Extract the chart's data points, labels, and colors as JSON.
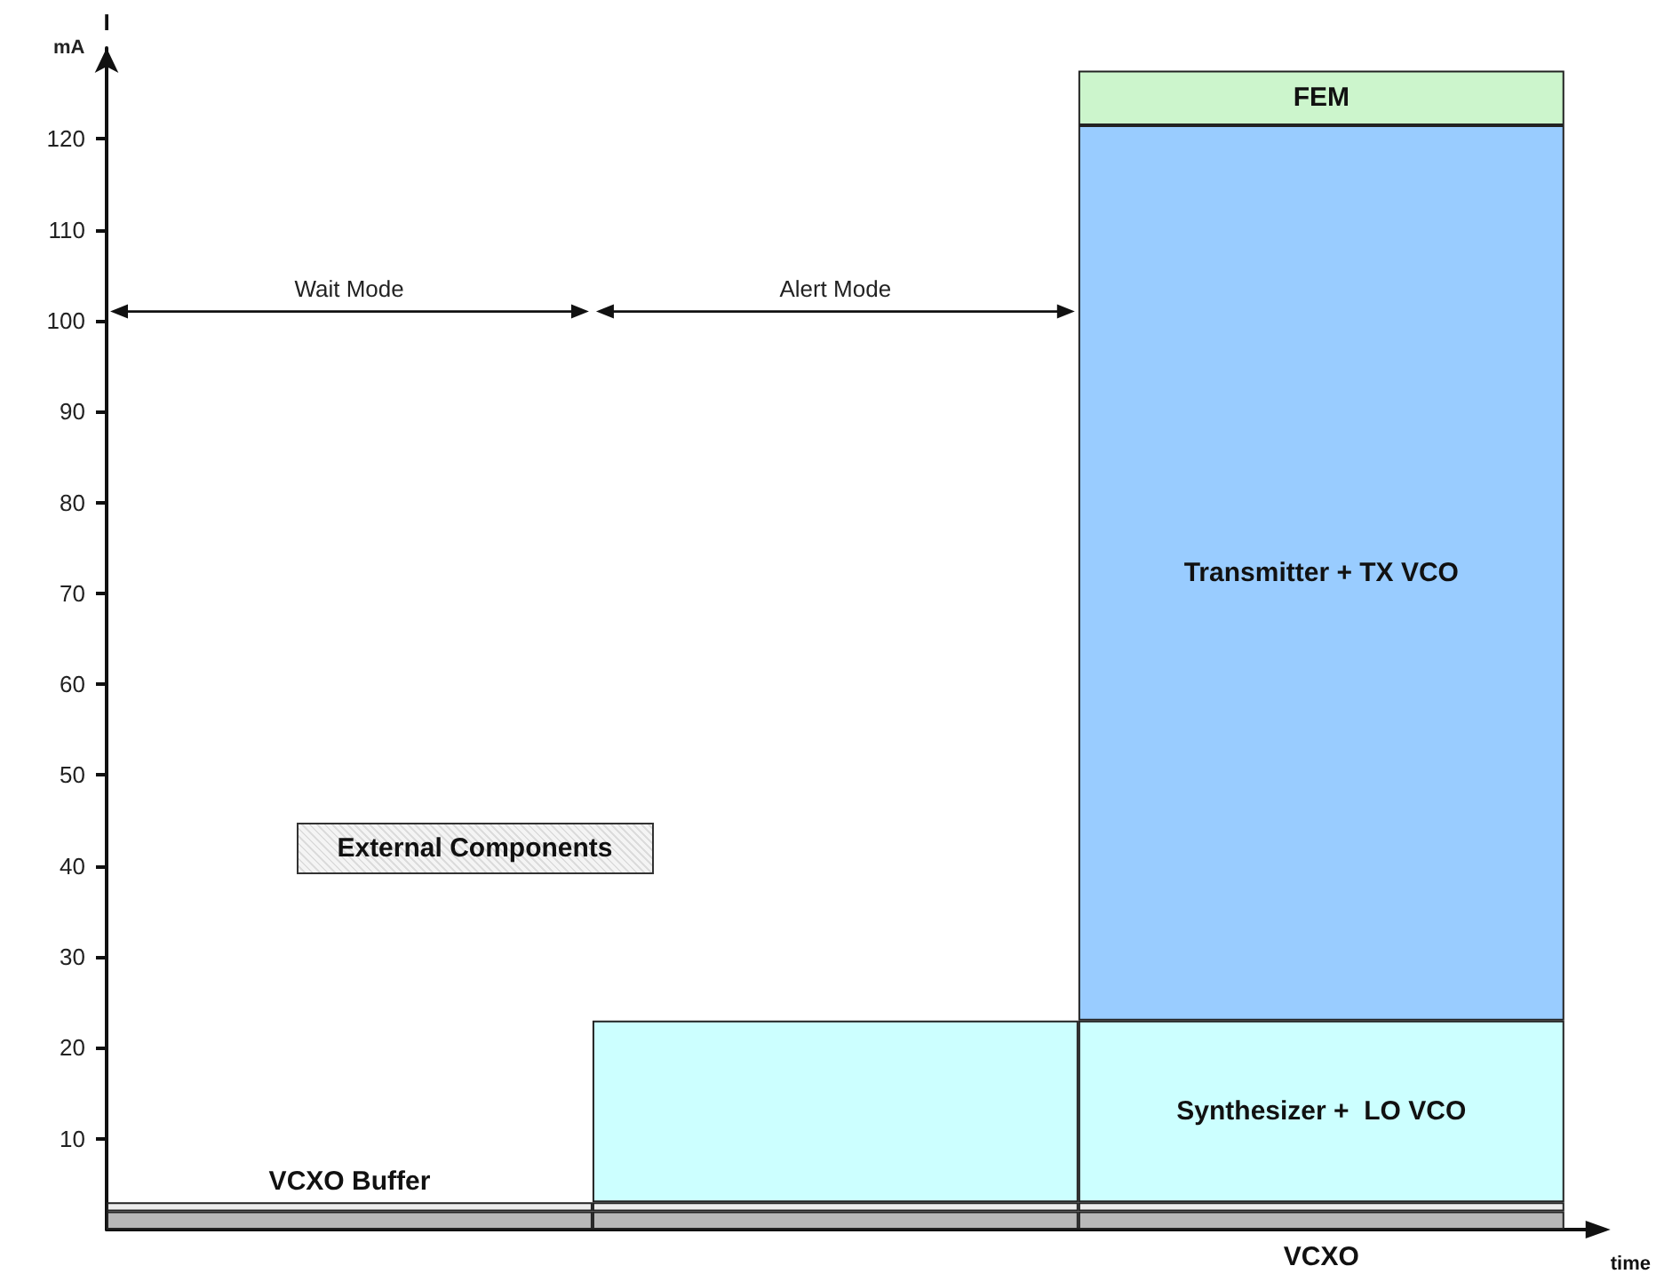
{
  "chart_data": {
    "type": "bar",
    "stacked": true,
    "xlabel": "time",
    "ylabel": "I",
    "categories": [
      null,
      null,
      null
    ],
    "series": [
      {
        "name": "VCXO",
        "color": "#b8b8b8",
        "values": [
          2,
          2,
          2
        ]
      },
      {
        "name": "VCXO Buffer",
        "color": "#ececec",
        "values": [
          1,
          1,
          1
        ]
      },
      {
        "name": "Synthesizer +  LO VCO",
        "color": "#ccffff",
        "values": [
          null,
          20,
          20
        ]
      },
      {
        "name": "Transmitter + TX VCO",
        "color": "#99ccff",
        "values": [
          null,
          null,
          98.5
        ]
      },
      {
        "name": "FEM",
        "color": "#ccf5cc",
        "values": [
          null,
          null,
          6
        ]
      }
    ],
    "ylim": [
      0,
      130
    ],
    "yticks": [
      10,
      20,
      30,
      40,
      50,
      60,
      70,
      80,
      90,
      100,
      110,
      120
    ],
    "tick_labels": "y",
    "grid": false,
    "legend": false,
    "annotations": [
      "Wait Mode",
      "Alert Mode",
      "External Components",
      "mA"
    ]
  }
}
